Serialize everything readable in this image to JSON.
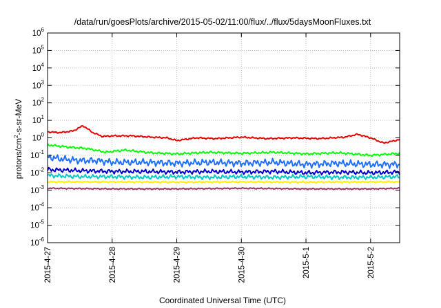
{
  "chart_data": {
    "type": "line",
    "title": "/data/run/goesPlots/archive/2015-05-02/11:00/flux/../flux/5daysMoonFluxes.txt",
    "xlabel": "Coordinated Universal Time (UTC)",
    "ylabel": "protons/cm2-s-sr-MeV",
    "ylabel_parts": {
      "before": "protons/cm",
      "sup": "2",
      "after": "-s-sr-MeV"
    },
    "yscale": "log",
    "ylim_exp": [
      -6,
      6
    ],
    "y_tick_base": "10",
    "y_tick_exponents": [
      -6,
      -5,
      -4,
      -3,
      -2,
      -1,
      0,
      1,
      2,
      3,
      4,
      5,
      6
    ],
    "y_tick_exp_labels": [
      "-6",
      "-5",
      "-4",
      "-3",
      "-2",
      "-1",
      "0",
      "1",
      "2",
      "3",
      "4",
      "5",
      "6"
    ],
    "xlim": [
      "2015-04-27",
      "2015-05-02 12:00"
    ],
    "x_ticks": [
      "2015-4-27",
      "2015-4-28",
      "2015-4-29",
      "2015-4-30",
      "2015-5-1",
      "2015-5-2"
    ],
    "x_tick_days": [
      0,
      1,
      2,
      3,
      4,
      5
    ],
    "x_span_days": 5.45,
    "grid": true,
    "legend": "none",
    "series": [
      {
        "color": "#e60000",
        "x": [
          0,
          0.2,
          0.4,
          0.55,
          0.7,
          0.85,
          1.0,
          1.3,
          1.6,
          1.85,
          2.0,
          2.3,
          2.6,
          3.0,
          3.4,
          3.8,
          4.2,
          4.6,
          4.8,
          5.0,
          5.2,
          5.45
        ],
        "y": [
          2.2,
          2.0,
          2.5,
          5.0,
          2.0,
          1.2,
          1.3,
          1.3,
          1.1,
          1.0,
          0.7,
          1.0,
          0.9,
          1.1,
          0.9,
          1.0,
          0.9,
          1.1,
          1.6,
          1.0,
          0.5,
          0.8
        ]
      },
      {
        "color": "#00ff00",
        "x": [
          0,
          0.3,
          0.6,
          0.9,
          1.2,
          1.6,
          2.0,
          2.5,
          3.0,
          3.5,
          4.0,
          4.5,
          5.0,
          5.45
        ],
        "y": [
          0.4,
          0.3,
          0.25,
          0.15,
          0.2,
          0.14,
          0.12,
          0.15,
          0.13,
          0.15,
          0.12,
          0.14,
          0.1,
          0.13
        ]
      },
      {
        "color": "#1f6fff",
        "x": [
          0,
          0.25,
          0.5,
          0.75,
          1.0,
          1.5,
          2.0,
          2.5,
          3.0,
          3.5,
          4.0,
          4.5,
          5.0,
          5.45
        ],
        "y": [
          0.08,
          0.06,
          0.05,
          0.05,
          0.04,
          0.04,
          0.035,
          0.04,
          0.035,
          0.04,
          0.03,
          0.035,
          0.03,
          0.03
        ]
      },
      {
        "color": "#0000cc",
        "x": [
          0,
          0.3,
          0.6,
          1.0,
          1.5,
          2.0,
          2.5,
          3.0,
          3.5,
          4.0,
          4.5,
          5.0,
          5.45
        ],
        "y": [
          0.015,
          0.014,
          0.013,
          0.012,
          0.012,
          0.011,
          0.012,
          0.011,
          0.012,
          0.01,
          0.011,
          0.01,
          0.011
        ]
      },
      {
        "color": "#00c8c8",
        "x": [
          0,
          0.5,
          1.0,
          1.5,
          2.0,
          2.5,
          3.0,
          3.5,
          4.0,
          4.5,
          5.0,
          5.45
        ],
        "y": [
          0.007,
          0.006,
          0.006,
          0.0055,
          0.006,
          0.0055,
          0.006,
          0.0055,
          0.006,
          0.0055,
          0.0055,
          0.006
        ]
      },
      {
        "color": "#ffee00",
        "x": [
          0,
          1.0,
          2.0,
          3.0,
          4.0,
          5.0,
          5.45
        ],
        "y": [
          0.003,
          0.003,
          0.0029,
          0.003,
          0.0029,
          0.003,
          0.003
        ]
      },
      {
        "color": "#993366",
        "x": [
          0,
          1.0,
          2.0,
          3.0,
          4.0,
          5.0,
          5.45
        ],
        "y": [
          0.0013,
          0.0012,
          0.0012,
          0.0013,
          0.0012,
          0.0012,
          0.0013
        ]
      }
    ]
  }
}
